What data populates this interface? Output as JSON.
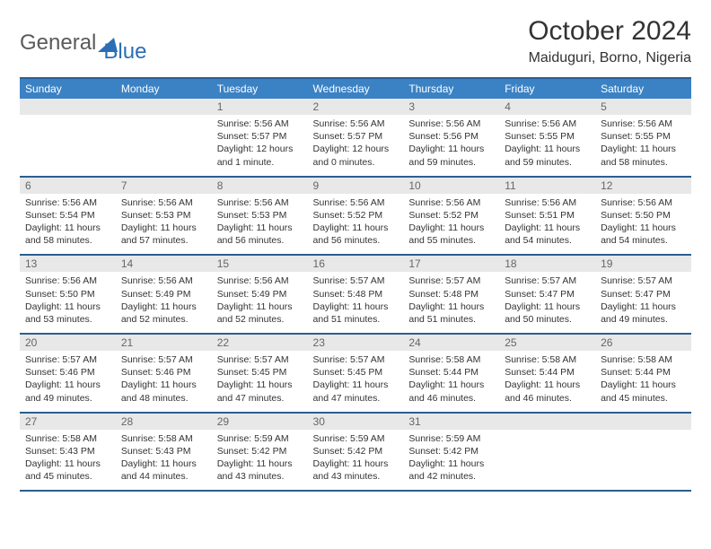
{
  "brand": {
    "part1": "General",
    "part2": "Blue"
  },
  "title": "October 2024",
  "location": "Maiduguri, Borno, Nigeria",
  "colors": {
    "header_bg": "#3b82c4",
    "header_border": "#2a5f8f",
    "daynum_bg": "#e8e8e8",
    "text": "#333333"
  },
  "day_headers": [
    "Sunday",
    "Monday",
    "Tuesday",
    "Wednesday",
    "Thursday",
    "Friday",
    "Saturday"
  ],
  "weeks": [
    [
      {
        "n": "",
        "sr": "",
        "ss": "",
        "dl": ""
      },
      {
        "n": "",
        "sr": "",
        "ss": "",
        "dl": ""
      },
      {
        "n": "1",
        "sr": "Sunrise: 5:56 AM",
        "ss": "Sunset: 5:57 PM",
        "dl": "Daylight: 12 hours and 1 minute."
      },
      {
        "n": "2",
        "sr": "Sunrise: 5:56 AM",
        "ss": "Sunset: 5:57 PM",
        "dl": "Daylight: 12 hours and 0 minutes."
      },
      {
        "n": "3",
        "sr": "Sunrise: 5:56 AM",
        "ss": "Sunset: 5:56 PM",
        "dl": "Daylight: 11 hours and 59 minutes."
      },
      {
        "n": "4",
        "sr": "Sunrise: 5:56 AM",
        "ss": "Sunset: 5:55 PM",
        "dl": "Daylight: 11 hours and 59 minutes."
      },
      {
        "n": "5",
        "sr": "Sunrise: 5:56 AM",
        "ss": "Sunset: 5:55 PM",
        "dl": "Daylight: 11 hours and 58 minutes."
      }
    ],
    [
      {
        "n": "6",
        "sr": "Sunrise: 5:56 AM",
        "ss": "Sunset: 5:54 PM",
        "dl": "Daylight: 11 hours and 58 minutes."
      },
      {
        "n": "7",
        "sr": "Sunrise: 5:56 AM",
        "ss": "Sunset: 5:53 PM",
        "dl": "Daylight: 11 hours and 57 minutes."
      },
      {
        "n": "8",
        "sr": "Sunrise: 5:56 AM",
        "ss": "Sunset: 5:53 PM",
        "dl": "Daylight: 11 hours and 56 minutes."
      },
      {
        "n": "9",
        "sr": "Sunrise: 5:56 AM",
        "ss": "Sunset: 5:52 PM",
        "dl": "Daylight: 11 hours and 56 minutes."
      },
      {
        "n": "10",
        "sr": "Sunrise: 5:56 AM",
        "ss": "Sunset: 5:52 PM",
        "dl": "Daylight: 11 hours and 55 minutes."
      },
      {
        "n": "11",
        "sr": "Sunrise: 5:56 AM",
        "ss": "Sunset: 5:51 PM",
        "dl": "Daylight: 11 hours and 54 minutes."
      },
      {
        "n": "12",
        "sr": "Sunrise: 5:56 AM",
        "ss": "Sunset: 5:50 PM",
        "dl": "Daylight: 11 hours and 54 minutes."
      }
    ],
    [
      {
        "n": "13",
        "sr": "Sunrise: 5:56 AM",
        "ss": "Sunset: 5:50 PM",
        "dl": "Daylight: 11 hours and 53 minutes."
      },
      {
        "n": "14",
        "sr": "Sunrise: 5:56 AM",
        "ss": "Sunset: 5:49 PM",
        "dl": "Daylight: 11 hours and 52 minutes."
      },
      {
        "n": "15",
        "sr": "Sunrise: 5:56 AM",
        "ss": "Sunset: 5:49 PM",
        "dl": "Daylight: 11 hours and 52 minutes."
      },
      {
        "n": "16",
        "sr": "Sunrise: 5:57 AM",
        "ss": "Sunset: 5:48 PM",
        "dl": "Daylight: 11 hours and 51 minutes."
      },
      {
        "n": "17",
        "sr": "Sunrise: 5:57 AM",
        "ss": "Sunset: 5:48 PM",
        "dl": "Daylight: 11 hours and 51 minutes."
      },
      {
        "n": "18",
        "sr": "Sunrise: 5:57 AM",
        "ss": "Sunset: 5:47 PM",
        "dl": "Daylight: 11 hours and 50 minutes."
      },
      {
        "n": "19",
        "sr": "Sunrise: 5:57 AM",
        "ss": "Sunset: 5:47 PM",
        "dl": "Daylight: 11 hours and 49 minutes."
      }
    ],
    [
      {
        "n": "20",
        "sr": "Sunrise: 5:57 AM",
        "ss": "Sunset: 5:46 PM",
        "dl": "Daylight: 11 hours and 49 minutes."
      },
      {
        "n": "21",
        "sr": "Sunrise: 5:57 AM",
        "ss": "Sunset: 5:46 PM",
        "dl": "Daylight: 11 hours and 48 minutes."
      },
      {
        "n": "22",
        "sr": "Sunrise: 5:57 AM",
        "ss": "Sunset: 5:45 PM",
        "dl": "Daylight: 11 hours and 47 minutes."
      },
      {
        "n": "23",
        "sr": "Sunrise: 5:57 AM",
        "ss": "Sunset: 5:45 PM",
        "dl": "Daylight: 11 hours and 47 minutes."
      },
      {
        "n": "24",
        "sr": "Sunrise: 5:58 AM",
        "ss": "Sunset: 5:44 PM",
        "dl": "Daylight: 11 hours and 46 minutes."
      },
      {
        "n": "25",
        "sr": "Sunrise: 5:58 AM",
        "ss": "Sunset: 5:44 PM",
        "dl": "Daylight: 11 hours and 46 minutes."
      },
      {
        "n": "26",
        "sr": "Sunrise: 5:58 AM",
        "ss": "Sunset: 5:44 PM",
        "dl": "Daylight: 11 hours and 45 minutes."
      }
    ],
    [
      {
        "n": "27",
        "sr": "Sunrise: 5:58 AM",
        "ss": "Sunset: 5:43 PM",
        "dl": "Daylight: 11 hours and 45 minutes."
      },
      {
        "n": "28",
        "sr": "Sunrise: 5:58 AM",
        "ss": "Sunset: 5:43 PM",
        "dl": "Daylight: 11 hours and 44 minutes."
      },
      {
        "n": "29",
        "sr": "Sunrise: 5:59 AM",
        "ss": "Sunset: 5:42 PM",
        "dl": "Daylight: 11 hours and 43 minutes."
      },
      {
        "n": "30",
        "sr": "Sunrise: 5:59 AM",
        "ss": "Sunset: 5:42 PM",
        "dl": "Daylight: 11 hours and 43 minutes."
      },
      {
        "n": "31",
        "sr": "Sunrise: 5:59 AM",
        "ss": "Sunset: 5:42 PM",
        "dl": "Daylight: 11 hours and 42 minutes."
      },
      {
        "n": "",
        "sr": "",
        "ss": "",
        "dl": ""
      },
      {
        "n": "",
        "sr": "",
        "ss": "",
        "dl": ""
      }
    ]
  ]
}
